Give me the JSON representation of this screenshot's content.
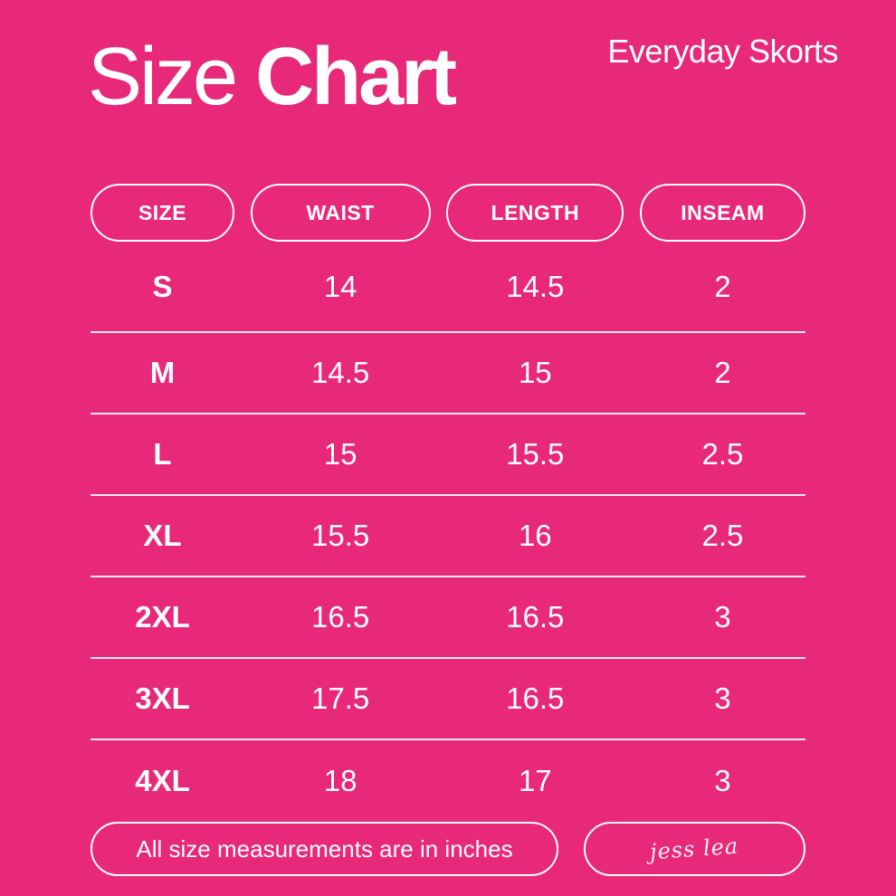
{
  "header": {
    "title_regular": "Size",
    "title_bold": "Chart",
    "product_name": "Everyday Skorts"
  },
  "table": {
    "columns": [
      "SIZE",
      "WAIST",
      "LENGTH",
      "INSEAM"
    ],
    "rows": [
      {
        "size": "S",
        "waist": "14",
        "length": "14.5",
        "inseam": "2"
      },
      {
        "size": "M",
        "waist": "14.5",
        "length": "15",
        "inseam": "2"
      },
      {
        "size": "L",
        "waist": "15",
        "length": "15.5",
        "inseam": "2.5"
      },
      {
        "size": "XL",
        "waist": "15.5",
        "length": "16",
        "inseam": "2.5"
      },
      {
        "size": "2XL",
        "waist": "16.5",
        "length": "16.5",
        "inseam": "3"
      },
      {
        "size": "3XL",
        "waist": "17.5",
        "length": "16.5",
        "inseam": "3"
      },
      {
        "size": "4XL",
        "waist": "18",
        "length": "17",
        "inseam": "3"
      }
    ]
  },
  "footer": {
    "note": "All size measurements are in inches",
    "signature": "jess lea"
  },
  "colors": {
    "background": "#E82878",
    "text": "#FFFFFF",
    "divider": "rgba(255,255,255,0.9)"
  },
  "chart_data": {
    "type": "table",
    "title": "Size Chart",
    "subtitle": "Everyday Skorts",
    "columns": [
      "SIZE",
      "WAIST",
      "LENGTH",
      "INSEAM"
    ],
    "rows": [
      [
        "S",
        14,
        14.5,
        2
      ],
      [
        "M",
        14.5,
        15,
        2
      ],
      [
        "L",
        15,
        15.5,
        2.5
      ],
      [
        "XL",
        15.5,
        16,
        2.5
      ],
      [
        "2XL",
        16.5,
        16.5,
        3
      ],
      [
        "3XL",
        17.5,
        16.5,
        3
      ],
      [
        "4XL",
        18,
        17,
        3
      ]
    ],
    "units": "inches",
    "note": "All size measurements are in inches"
  }
}
